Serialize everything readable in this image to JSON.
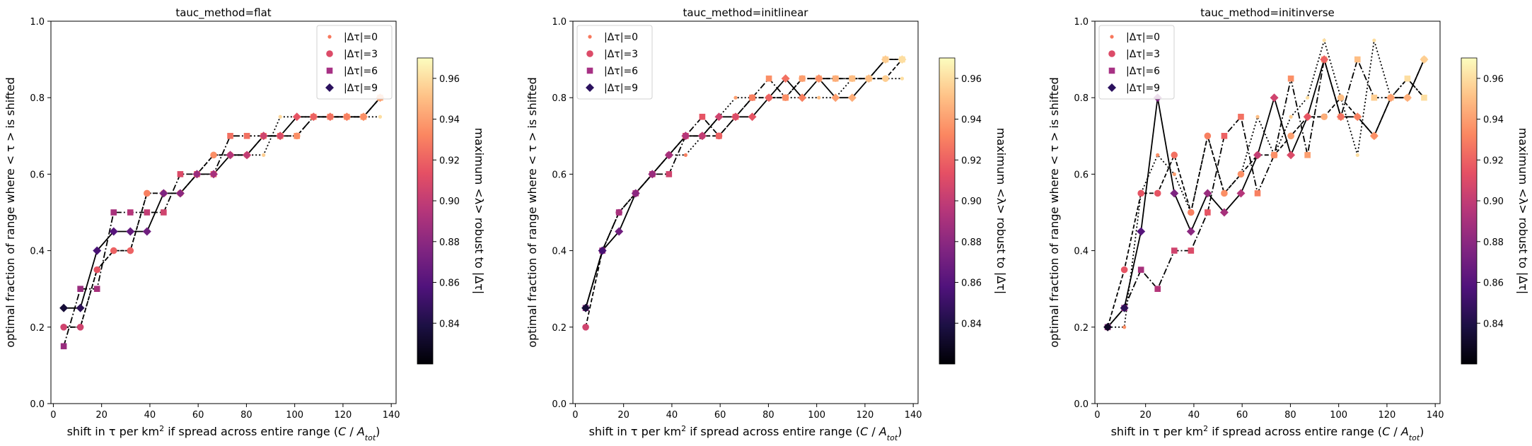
{
  "colorbar": {
    "label": "maximum <λ> robust to |Δτ|",
    "ticks": [
      "0.84",
      "0.86",
      "0.88",
      "0.90",
      "0.92",
      "0.94",
      "0.96"
    ],
    "tick_values": [
      0.84,
      0.86,
      0.88,
      0.9,
      0.92,
      0.94,
      0.96
    ],
    "range": [
      0.82,
      0.97
    ],
    "colormap": "magma"
  },
  "legend": {
    "entries": [
      {
        "label": "|Δτ|=0",
        "marker": "point",
        "line": "dotted"
      },
      {
        "label": "|Δτ|=3",
        "marker": "circle",
        "line": "dashed"
      },
      {
        "label": "|Δτ|=6",
        "marker": "square",
        "line": "dashdot"
      },
      {
        "label": "|Δτ|=9",
        "marker": "diamond",
        "line": "solid"
      }
    ],
    "placement": [
      "top-right",
      "top-left",
      "top-left"
    ]
  },
  "axes": {
    "xlabel_prefix": "shift in τ per km",
    "xlabel_sup": "2",
    "xlabel_mid": " if spread across entire range (",
    "xlabel_C": "C",
    "xlabel_slash": " / ",
    "xlabel_A": "A",
    "xlabel_sub": "tot",
    "xlabel_end": ")",
    "ylabel": "optimal fraction of range where < τ > is shifted",
    "xticks": [
      "0",
      "20",
      "40",
      "60",
      "80",
      "100",
      "120",
      "140"
    ],
    "xtick_values": [
      0,
      20,
      40,
      60,
      80,
      100,
      120,
      140
    ],
    "yticks": [
      "0.0",
      "0.2",
      "0.4",
      "0.6",
      "0.8",
      "1.0"
    ],
    "ytick_values": [
      0,
      0.2,
      0.4,
      0.6,
      0.8,
      1.0
    ],
    "xlim": [
      -1,
      142
    ],
    "ylim": [
      0,
      1
    ]
  },
  "chart_data": [
    {
      "type": "line",
      "title": "tauc_method=flat",
      "x": [
        4.3,
        11.2,
        18.1,
        25.0,
        31.9,
        38.8,
        45.7,
        52.6,
        59.5,
        66.4,
        73.3,
        80.2,
        87.1,
        94.0,
        100.9,
        107.8,
        114.7,
        121.6,
        128.5,
        135.4
      ],
      "series": [
        {
          "name": "|Δτ|=0",
          "y": [
            0.2,
            0.2,
            0.35,
            0.4,
            0.4,
            0.55,
            0.55,
            0.55,
            0.6,
            0.65,
            0.65,
            0.65,
            0.65,
            0.75,
            0.75,
            0.75,
            0.75,
            0.75,
            0.75,
            0.75
          ],
          "colors": [
            0.915,
            0.915,
            0.915,
            0.93,
            0.93,
            0.93,
            0.93,
            0.93,
            0.945,
            0.945,
            0.945,
            0.945,
            0.955,
            0.958,
            0.96,
            0.96,
            0.96,
            0.96,
            0.96,
            0.96
          ]
        },
        {
          "name": "|Δτ|=3",
          "y": [
            0.2,
            0.2,
            0.35,
            0.4,
            0.4,
            0.55,
            0.55,
            0.55,
            0.6,
            0.65,
            0.65,
            0.65,
            0.7,
            0.7,
            0.7,
            0.75,
            0.75,
            0.75,
            0.75,
            0.8
          ],
          "colors": [
            0.905,
            0.905,
            0.915,
            0.92,
            0.92,
            0.93,
            0.93,
            0.93,
            0.935,
            0.935,
            0.935,
            0.935,
            0.935,
            0.94,
            0.94,
            0.94,
            0.945,
            0.945,
            0.95,
            0.955
          ]
        },
        {
          "name": "|Δτ|=6",
          "y": [
            0.15,
            0.3,
            0.3,
            0.5,
            0.5,
            0.5,
            0.5,
            0.6,
            0.6,
            0.6,
            0.7,
            0.7,
            0.7,
            0.7,
            0.7,
            0.75,
            0.75,
            0.75,
            0.75,
            0.8
          ],
          "colors": [
            0.885,
            0.885,
            0.89,
            0.89,
            0.895,
            0.9,
            0.905,
            0.91,
            0.915,
            0.92,
            0.925,
            0.925,
            0.93,
            0.93,
            0.935,
            0.935,
            0.935,
            0.94,
            0.94,
            0.945
          ]
        },
        {
          "name": "|Δτ|=9",
          "y": [
            0.25,
            0.25,
            0.4,
            0.45,
            0.45,
            0.45,
            0.55,
            0.55,
            0.6,
            0.6,
            0.65,
            0.65,
            0.7,
            0.7,
            0.75,
            0.75,
            0.75,
            0.75,
            0.75,
            0.8
          ],
          "colors": [
            0.835,
            0.845,
            0.855,
            0.86,
            0.865,
            0.87,
            0.875,
            0.88,
            0.885,
            0.89,
            0.895,
            0.9,
            0.905,
            0.91,
            0.915,
            0.92,
            0.925,
            0.93,
            0.935,
            0.94
          ]
        }
      ]
    },
    {
      "type": "line",
      "title": "tauc_method=initlinear",
      "x": [
        4.3,
        11.2,
        18.1,
        25.0,
        31.9,
        38.8,
        45.7,
        52.6,
        59.5,
        66.4,
        73.3,
        80.2,
        87.1,
        94.0,
        100.9,
        107.8,
        114.7,
        121.6,
        128.5,
        135.4
      ],
      "series": [
        {
          "name": "|Δτ|=0",
          "y": [
            0.25,
            0.4,
            0.5,
            0.55,
            0.6,
            0.65,
            0.65,
            0.7,
            0.75,
            0.8,
            0.8,
            0.8,
            0.8,
            0.8,
            0.8,
            0.8,
            0.85,
            0.85,
            0.85,
            0.85
          ],
          "colors": [
            0.87,
            0.875,
            0.88,
            0.885,
            0.89,
            0.895,
            0.93,
            0.93,
            0.935,
            0.94,
            0.94,
            0.945,
            0.945,
            0.95,
            0.95,
            0.955,
            0.955,
            0.955,
            0.96,
            0.96
          ]
        },
        {
          "name": "|Δτ|=3",
          "y": [
            0.2,
            0.4,
            0.5,
            0.55,
            0.6,
            0.65,
            0.7,
            0.7,
            0.7,
            0.75,
            0.8,
            0.8,
            0.8,
            0.85,
            0.85,
            0.85,
            0.85,
            0.85,
            0.85,
            0.9
          ],
          "colors": [
            0.905,
            0.895,
            0.89,
            0.885,
            0.895,
            0.9,
            0.905,
            0.91,
            0.915,
            0.92,
            0.925,
            0.93,
            0.935,
            0.94,
            0.945,
            0.95,
            0.95,
            0.955,
            0.955,
            0.96
          ]
        },
        {
          "name": "|Δτ|=6",
          "y": [
            0.25,
            0.4,
            0.5,
            0.55,
            0.6,
            0.6,
            0.7,
            0.75,
            0.7,
            0.75,
            0.8,
            0.85,
            0.8,
            0.85,
            0.85,
            0.85,
            0.85,
            0.85,
            0.9,
            0.9
          ],
          "colors": [
            0.88,
            0.885,
            0.89,
            0.895,
            0.9,
            0.905,
            0.91,
            0.915,
            0.92,
            0.925,
            0.93,
            0.935,
            0.935,
            0.94,
            0.945,
            0.945,
            0.95,
            0.955,
            0.955,
            0.96
          ]
        },
        {
          "name": "|Δτ|=9",
          "y": [
            0.25,
            0.4,
            0.45,
            0.55,
            0.6,
            0.65,
            0.7,
            0.7,
            0.75,
            0.75,
            0.75,
            0.8,
            0.85,
            0.8,
            0.85,
            0.8,
            0.8,
            0.85,
            0.9,
            0.9
          ],
          "colors": [
            0.835,
            0.855,
            0.87,
            0.88,
            0.885,
            0.89,
            0.895,
            0.9,
            0.905,
            0.91,
            0.915,
            0.92,
            0.925,
            0.93,
            0.935,
            0.94,
            0.945,
            0.95,
            0.955,
            0.96
          ]
        }
      ]
    },
    {
      "type": "line",
      "title": "tauc_method=initinverse",
      "x": [
        4.3,
        11.2,
        18.1,
        25.0,
        31.9,
        38.8,
        45.7,
        52.6,
        59.5,
        66.4,
        73.3,
        80.2,
        87.1,
        94.0,
        100.9,
        107.8,
        114.7,
        121.6,
        128.5,
        135.4
      ],
      "series": [
        {
          "name": "|Δτ|=0",
          "y": [
            0.2,
            0.2,
            0.55,
            0.65,
            0.6,
            0.5,
            0.7,
            0.55,
            0.6,
            0.75,
            0.65,
            0.75,
            0.8,
            0.95,
            0.8,
            0.65,
            0.95,
            0.8,
            0.85,
            0.8
          ],
          "colors": [
            0.935,
            0.935,
            0.93,
            0.935,
            0.94,
            0.94,
            0.945,
            0.945,
            0.95,
            0.95,
            0.955,
            0.955,
            0.96,
            0.96,
            0.96,
            0.96,
            0.96,
            0.96,
            0.96,
            0.96
          ]
        },
        {
          "name": "|Δτ|=3",
          "y": [
            0.2,
            0.35,
            0.55,
            0.55,
            0.65,
            0.5,
            0.7,
            0.55,
            0.6,
            0.65,
            0.65,
            0.7,
            0.75,
            0.75,
            0.8,
            0.75,
            0.7,
            0.8,
            0.8,
            0.9
          ],
          "colors": [
            0.915,
            0.915,
            0.915,
            0.915,
            0.925,
            0.93,
            0.93,
            0.935,
            0.935,
            0.935,
            0.94,
            0.94,
            0.945,
            0.945,
            0.95,
            0.95,
            0.955,
            0.955,
            0.955,
            0.96
          ]
        },
        {
          "name": "|Δτ|=6",
          "y": [
            0.2,
            0.25,
            0.35,
            0.3,
            0.4,
            0.4,
            0.5,
            0.7,
            0.75,
            0.55,
            0.65,
            0.85,
            0.65,
            0.9,
            0.75,
            0.9,
            0.8,
            0.8,
            0.85,
            0.8
          ],
          "colors": [
            0.88,
            0.885,
            0.89,
            0.895,
            0.905,
            0.91,
            0.915,
            0.92,
            0.925,
            0.93,
            0.935,
            0.935,
            0.94,
            0.945,
            0.945,
            0.95,
            0.955,
            0.955,
            0.96,
            0.96
          ]
        },
        {
          "name": "|Δτ|=9",
          "y": [
            0.2,
            0.25,
            0.45,
            0.8,
            0.55,
            0.45,
            0.55,
            0.5,
            0.55,
            0.65,
            0.8,
            0.65,
            0.75,
            0.9,
            0.75,
            0.75,
            0.7,
            0.8,
            0.8,
            0.9
          ],
          "colors": [
            0.83,
            0.845,
            0.86,
            0.875,
            0.875,
            0.88,
            0.885,
            0.89,
            0.895,
            0.9,
            0.905,
            0.91,
            0.915,
            0.92,
            0.925,
            0.93,
            0.935,
            0.94,
            0.945,
            0.955
          ]
        }
      ]
    }
  ]
}
